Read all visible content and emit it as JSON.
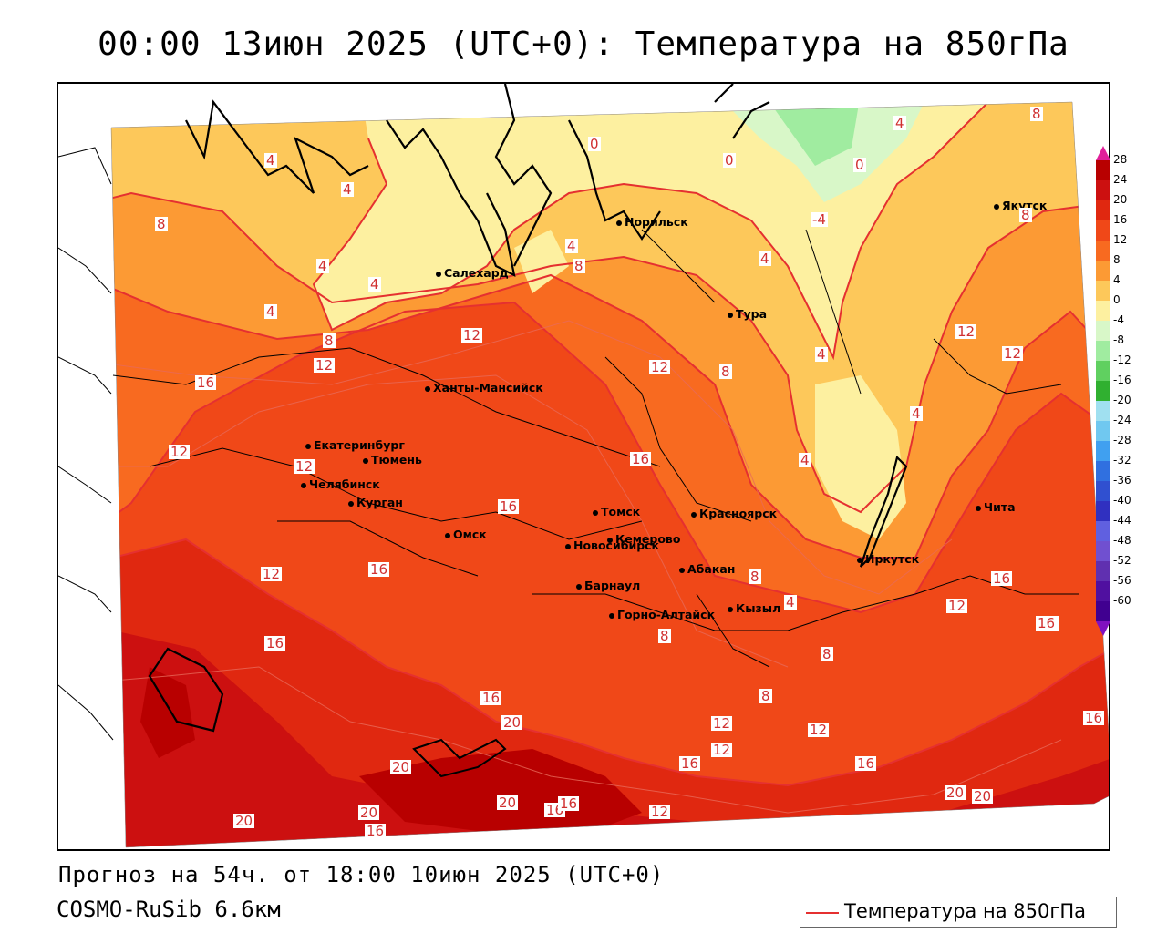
{
  "title": "00:00 13июн 2025 (UTC+0): Температура на 850гПа",
  "footer": {
    "forecast": "Прогноз на 54ч. от 18:00 10июн 2025 (UTC+0)",
    "model": "COSMO-RuSib 6.6км"
  },
  "legend": {
    "label": "Температура на 850гПа",
    "color": "#e53030"
  },
  "colorbar": {
    "labels": [
      "28",
      "24",
      "20",
      "16",
      "12",
      "8",
      "4",
      "0",
      "-4",
      "-8",
      "-12",
      "-16",
      "-20",
      "-24",
      "-28",
      "-32",
      "-36",
      "-40",
      "-44",
      "-48",
      "-52",
      "-56",
      "-60"
    ],
    "colors": [
      "#b80000",
      "#cc1010",
      "#e02810",
      "#f04818",
      "#f86a20",
      "#fc9a34",
      "#fdc85a",
      "#fdf0a0",
      "#d8f7c8",
      "#a0eca0",
      "#60d060",
      "#30b030",
      "#a0e0f0",
      "#70c8f0",
      "#40a0f0",
      "#3070e0",
      "#3050d0",
      "#3030c0",
      "#6060e0",
      "#7050d0",
      "#6030b0",
      "#5010a0",
      "#400090"
    ]
  },
  "cities": [
    {
      "name": "Норильск"
    },
    {
      "name": "Якутск"
    },
    {
      "name": "Салехард"
    },
    {
      "name": "Тура"
    },
    {
      "name": "Ханты-Мансийск"
    },
    {
      "name": "Екатеринбург"
    },
    {
      "name": "Тюмень"
    },
    {
      "name": "Челябинск"
    },
    {
      "name": "Курган"
    },
    {
      "name": "Омск"
    },
    {
      "name": "Новосибирск"
    },
    {
      "name": "Томск"
    },
    {
      "name": "Кемерово"
    },
    {
      "name": "Красноярск"
    },
    {
      "name": "Барнаул"
    },
    {
      "name": "Абакан"
    },
    {
      "name": "Горно-Алтайск"
    },
    {
      "name": "Кызыл"
    },
    {
      "name": "Иркутск"
    },
    {
      "name": "Чита"
    }
  ],
  "contour_labels": [
    "4",
    "4",
    "0",
    "0",
    "0",
    "4",
    "8",
    "8",
    "4",
    "4",
    "4",
    "-4",
    "8",
    "8",
    "4",
    "4",
    "4",
    "12",
    "12",
    "12",
    "8",
    "8",
    "12",
    "12",
    "16",
    "12",
    "12",
    "4",
    "4",
    "16",
    "16",
    "12",
    "16",
    "16",
    "12",
    "16",
    "16",
    "16",
    "8",
    "4",
    "8",
    "8",
    "20",
    "20",
    "20",
    "20",
    "20",
    "16",
    "16",
    "16",
    "20",
    "20",
    "12",
    "12",
    "12",
    "16",
    "12",
    "16",
    "16",
    "16",
    "8"
  ]
}
